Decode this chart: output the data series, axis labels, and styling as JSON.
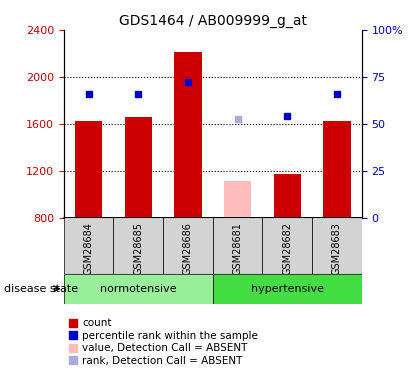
{
  "title": "GDS1464 / AB009999_g_at",
  "samples": [
    "GSM28684",
    "GSM28685",
    "GSM28686",
    "GSM28681",
    "GSM28682",
    "GSM28683"
  ],
  "bar_bottom": 800,
  "bar_values": [
    1620,
    1660,
    2210,
    1110,
    1175,
    1620
  ],
  "bar_colors": [
    "#cc0000",
    "#cc0000",
    "#cc0000",
    "#ffbbbb",
    "#cc0000",
    "#cc0000"
  ],
  "rank_values": [
    1850,
    1850,
    1960,
    1640,
    1670,
    1850
  ],
  "rank_colors": [
    "#0000cc",
    "#0000cc",
    "#0000cc",
    "#aaaadd",
    "#0000cc",
    "#0000cc"
  ],
  "ylim_left": [
    800,
    2400
  ],
  "ylim_right": [
    0,
    100
  ],
  "yticks_left": [
    800,
    1200,
    1600,
    2000,
    2400
  ],
  "yticks_right": [
    0,
    25,
    50,
    75,
    100
  ],
  "ytick_labels_right": [
    "0",
    "25",
    "50",
    "75",
    "100%"
  ],
  "dotted_lines": [
    1200,
    1600,
    2000
  ],
  "norm_color": "#99ee99",
  "hyper_color": "#44dd44",
  "label_color_red": "#cc0000",
  "label_color_blue": "#0000cc",
  "bar_width": 0.55,
  "figsize": [
    4.11,
    3.75
  ],
  "dpi": 100
}
